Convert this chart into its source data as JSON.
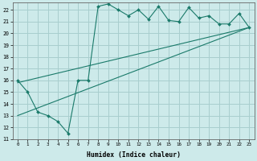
{
  "xlabel": "Humidex (Indice chaleur)",
  "background_color": "#cdeaea",
  "grid_color": "#a8cece",
  "line_color": "#1a7a6a",
  "xlim": [
    -0.5,
    23.5
  ],
  "ylim": [
    11,
    22.6
  ],
  "x_ticks": [
    0,
    1,
    2,
    3,
    4,
    5,
    6,
    7,
    8,
    9,
    10,
    11,
    12,
    13,
    14,
    15,
    16,
    17,
    18,
    19,
    20,
    21,
    22,
    23
  ],
  "y_ticks": [
    11,
    12,
    13,
    14,
    15,
    16,
    17,
    18,
    19,
    20,
    21,
    22
  ],
  "series1_x": [
    0,
    1,
    2,
    3,
    4,
    5,
    6,
    7,
    8,
    9,
    10,
    11,
    12,
    13,
    14,
    15,
    16,
    17,
    18,
    19,
    20,
    21,
    22,
    23
  ],
  "series1_y": [
    16.0,
    15.0,
    13.3,
    13.0,
    12.5,
    11.5,
    16.0,
    16.0,
    22.3,
    22.5,
    22.0,
    21.5,
    22.0,
    21.2,
    22.3,
    21.1,
    21.0,
    22.2,
    21.3,
    21.5,
    20.8,
    20.8,
    21.7,
    20.5
  ],
  "series2_x": [
    0,
    23
  ],
  "series2_y": [
    15.8,
    20.5
  ],
  "series3_x": [
    0,
    23
  ],
  "series3_y": [
    13.0,
    20.5
  ]
}
